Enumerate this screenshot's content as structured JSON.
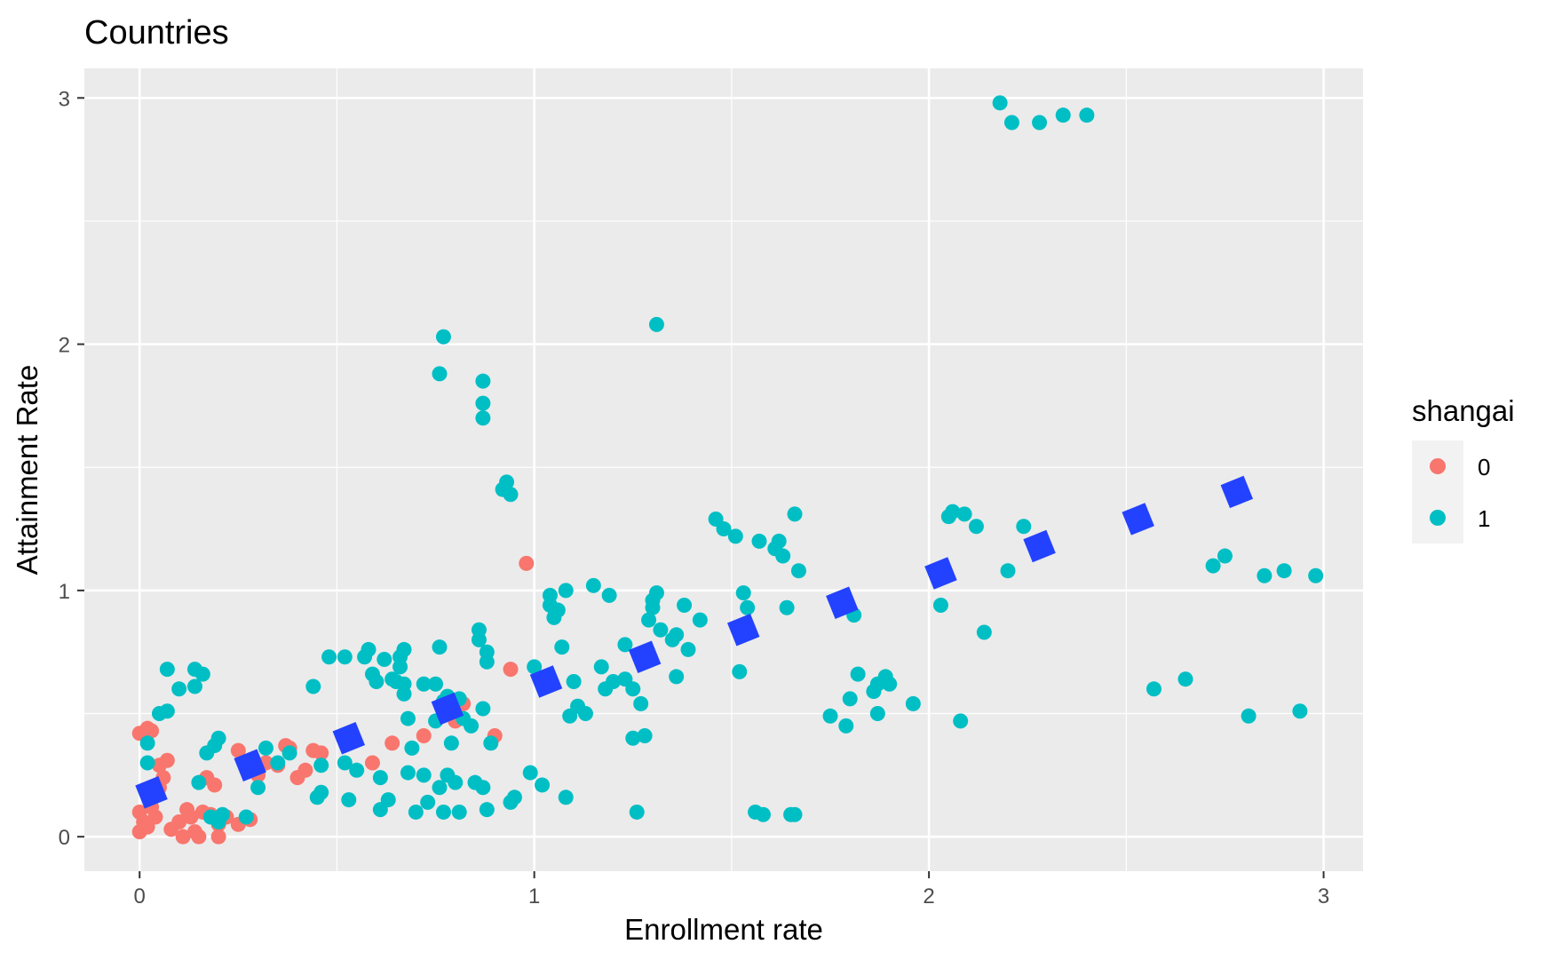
{
  "chart_data": {
    "type": "scatter",
    "title": "Countries",
    "xlabel": "Enrollment rate",
    "ylabel": "Attainment Rate",
    "xlim": [
      -0.14,
      3.1
    ],
    "ylim": [
      -0.14,
      3.12
    ],
    "xticks": [
      0,
      1,
      2,
      3
    ],
    "yticks": [
      0,
      1,
      2,
      3
    ],
    "grid": true,
    "legend": {
      "title": "shangai",
      "position": "right",
      "entries": [
        {
          "label": "0",
          "color": "#F8766D"
        },
        {
          "label": "1",
          "color": "#00BFC4"
        }
      ]
    },
    "series": [
      {
        "name": "0",
        "color": "#F8766D",
        "points": [
          [
            0.0,
            0.42
          ],
          [
            0.02,
            0.44
          ],
          [
            0.03,
            0.43
          ],
          [
            0.0,
            0.1
          ],
          [
            0.01,
            0.06
          ],
          [
            0.0,
            0.02
          ],
          [
            0.02,
            0.04
          ],
          [
            0.03,
            0.12
          ],
          [
            0.04,
            0.08
          ],
          [
            0.05,
            0.2
          ],
          [
            0.06,
            0.24
          ],
          [
            0.05,
            0.29
          ],
          [
            0.07,
            0.31
          ],
          [
            0.08,
            0.03
          ],
          [
            0.1,
            0.06
          ],
          [
            0.11,
            0.0
          ],
          [
            0.12,
            0.11
          ],
          [
            0.13,
            0.08
          ],
          [
            0.14,
            0.02
          ],
          [
            0.15,
            0.0
          ],
          [
            0.16,
            0.1
          ],
          [
            0.17,
            0.24
          ],
          [
            0.18,
            0.09
          ],
          [
            0.19,
            0.21
          ],
          [
            0.2,
            0.05
          ],
          [
            0.2,
            0.0
          ],
          [
            0.22,
            0.08
          ],
          [
            0.25,
            0.05
          ],
          [
            0.25,
            0.35
          ],
          [
            0.28,
            0.07
          ],
          [
            0.3,
            0.25
          ],
          [
            0.32,
            0.3
          ],
          [
            0.35,
            0.29
          ],
          [
            0.37,
            0.37
          ],
          [
            0.38,
            0.36
          ],
          [
            0.4,
            0.24
          ],
          [
            0.42,
            0.27
          ],
          [
            0.44,
            0.35
          ],
          [
            0.46,
            0.34
          ],
          [
            0.59,
            0.3
          ],
          [
            0.64,
            0.38
          ],
          [
            0.72,
            0.41
          ],
          [
            0.8,
            0.47
          ],
          [
            0.82,
            0.54
          ],
          [
            0.9,
            0.41
          ],
          [
            0.94,
            0.68
          ],
          [
            0.98,
            1.11
          ]
        ]
      },
      {
        "name": "1",
        "color": "#00BFC4",
        "points": [
          [
            0.02,
            0.38
          ],
          [
            0.02,
            0.3
          ],
          [
            0.05,
            0.5
          ],
          [
            0.07,
            0.68
          ],
          [
            0.07,
            0.51
          ],
          [
            0.1,
            0.6
          ],
          [
            0.14,
            0.61
          ],
          [
            0.14,
            0.68
          ],
          [
            0.16,
            0.66
          ],
          [
            0.15,
            0.22
          ],
          [
            0.17,
            0.34
          ],
          [
            0.19,
            0.37
          ],
          [
            0.2,
            0.4
          ],
          [
            0.18,
            0.08
          ],
          [
            0.2,
            0.06
          ],
          [
            0.21,
            0.09
          ],
          [
            0.27,
            0.08
          ],
          [
            0.3,
            0.2
          ],
          [
            0.32,
            0.36
          ],
          [
            0.35,
            0.3
          ],
          [
            0.38,
            0.34
          ],
          [
            0.44,
            0.61
          ],
          [
            0.45,
            0.16
          ],
          [
            0.46,
            0.18
          ],
          [
            0.46,
            0.29
          ],
          [
            0.48,
            0.73
          ],
          [
            0.52,
            0.73
          ],
          [
            0.52,
            0.3
          ],
          [
            0.53,
            0.15
          ],
          [
            0.55,
            0.27
          ],
          [
            0.57,
            0.73
          ],
          [
            0.58,
            0.76
          ],
          [
            0.59,
            0.66
          ],
          [
            0.6,
            0.63
          ],
          [
            0.61,
            0.24
          ],
          [
            0.61,
            0.11
          ],
          [
            0.62,
            0.72
          ],
          [
            0.63,
            0.15
          ],
          [
            0.64,
            0.64
          ],
          [
            0.65,
            0.63
          ],
          [
            0.66,
            0.69
          ],
          [
            0.66,
            0.73
          ],
          [
            0.67,
            0.76
          ],
          [
            0.67,
            0.62
          ],
          [
            0.67,
            0.58
          ],
          [
            0.68,
            0.48
          ],
          [
            0.68,
            0.26
          ],
          [
            0.69,
            0.36
          ],
          [
            0.7,
            0.1
          ],
          [
            0.72,
            0.62
          ],
          [
            0.72,
            0.25
          ],
          [
            0.73,
            0.14
          ],
          [
            0.75,
            0.62
          ],
          [
            0.75,
            0.47
          ],
          [
            0.76,
            0.77
          ],
          [
            0.76,
            0.2
          ],
          [
            0.77,
            0.1
          ],
          [
            0.77,
            0.55
          ],
          [
            0.78,
            0.57
          ],
          [
            0.78,
            0.25
          ],
          [
            0.79,
            0.38
          ],
          [
            0.8,
            0.22
          ],
          [
            0.81,
            0.1
          ],
          [
            0.81,
            0.56
          ],
          [
            0.82,
            0.48
          ],
          [
            0.84,
            0.45
          ],
          [
            0.85,
            0.22
          ],
          [
            0.86,
            0.8
          ],
          [
            0.86,
            0.84
          ],
          [
            0.87,
            0.52
          ],
          [
            0.87,
            0.2
          ],
          [
            0.88,
            0.11
          ],
          [
            0.88,
            0.71
          ],
          [
            0.88,
            0.75
          ],
          [
            0.89,
            0.38
          ],
          [
            0.76,
            1.88
          ],
          [
            0.77,
            2.03
          ],
          [
            0.87,
            1.85
          ],
          [
            0.87,
            1.76
          ],
          [
            0.87,
            1.7
          ],
          [
            0.92,
            1.41
          ],
          [
            0.93,
            1.44
          ],
          [
            0.94,
            1.39
          ],
          [
            0.94,
            0.14
          ],
          [
            0.95,
            0.16
          ],
          [
            0.99,
            0.26
          ],
          [
            1.0,
            0.69
          ],
          [
            1.02,
            0.21
          ],
          [
            1.04,
            0.98
          ],
          [
            1.04,
            0.94
          ],
          [
            1.05,
            0.89
          ],
          [
            1.06,
            0.92
          ],
          [
            1.07,
            0.77
          ],
          [
            1.08,
            0.16
          ],
          [
            1.09,
            0.49
          ],
          [
            1.1,
            0.63
          ],
          [
            1.11,
            0.53
          ],
          [
            1.13,
            0.5
          ],
          [
            1.08,
            1.0
          ],
          [
            1.15,
            1.02
          ],
          [
            1.19,
            0.98
          ],
          [
            1.17,
            0.69
          ],
          [
            1.18,
            0.6
          ],
          [
            1.2,
            0.63
          ],
          [
            1.23,
            0.64
          ],
          [
            1.23,
            0.78
          ],
          [
            1.25,
            0.6
          ],
          [
            1.25,
            0.4
          ],
          [
            1.26,
            0.1
          ],
          [
            1.27,
            0.54
          ],
          [
            1.28,
            0.41
          ],
          [
            1.29,
            0.88
          ],
          [
            1.3,
            0.93
          ],
          [
            1.3,
            0.96
          ],
          [
            1.31,
            0.99
          ],
          [
            1.32,
            0.84
          ],
          [
            1.31,
            2.08
          ],
          [
            1.35,
            0.8
          ],
          [
            1.36,
            0.82
          ],
          [
            1.36,
            0.65
          ],
          [
            1.38,
            0.94
          ],
          [
            1.39,
            0.76
          ],
          [
            1.42,
            0.88
          ],
          [
            1.46,
            1.29
          ],
          [
            1.48,
            1.25
          ],
          [
            1.51,
            1.22
          ],
          [
            1.52,
            0.67
          ],
          [
            1.53,
            0.99
          ],
          [
            1.54,
            0.93
          ],
          [
            1.57,
            1.2
          ],
          [
            1.61,
            1.17
          ],
          [
            1.62,
            1.2
          ],
          [
            1.63,
            1.14
          ],
          [
            1.64,
            0.93
          ],
          [
            1.66,
            1.31
          ],
          [
            1.67,
            1.08
          ],
          [
            1.56,
            0.1
          ],
          [
            1.58,
            0.09
          ],
          [
            1.65,
            0.09
          ],
          [
            1.66,
            0.09
          ],
          [
            1.75,
            0.49
          ],
          [
            1.79,
            0.45
          ],
          [
            1.8,
            0.56
          ],
          [
            1.81,
            0.9
          ],
          [
            1.82,
            0.66
          ],
          [
            1.86,
            0.59
          ],
          [
            1.87,
            0.62
          ],
          [
            1.87,
            0.5
          ],
          [
            1.89,
            0.65
          ],
          [
            1.9,
            0.62
          ],
          [
            1.96,
            0.54
          ],
          [
            2.03,
            0.94
          ],
          [
            2.05,
            1.3
          ],
          [
            2.06,
            1.32
          ],
          [
            2.09,
            1.31
          ],
          [
            2.12,
            1.26
          ],
          [
            2.14,
            0.83
          ],
          [
            2.08,
            0.47
          ],
          [
            2.2,
            1.08
          ],
          [
            2.24,
            1.26
          ],
          [
            2.18,
            2.98
          ],
          [
            2.21,
            2.9
          ],
          [
            2.28,
            2.9
          ],
          [
            2.34,
            2.93
          ],
          [
            2.4,
            2.93
          ],
          [
            2.57,
            0.6
          ],
          [
            2.65,
            0.64
          ],
          [
            2.72,
            1.1
          ],
          [
            2.75,
            1.14
          ],
          [
            2.81,
            0.49
          ],
          [
            2.85,
            1.06
          ],
          [
            2.9,
            1.08
          ],
          [
            2.94,
            0.51
          ],
          [
            2.98,
            1.06
          ]
        ]
      },
      {
        "name": "",
        "color": "#2342FF",
        "shape": "square",
        "points": [
          [
            0.03,
            0.18
          ],
          [
            0.28,
            0.29
          ],
          [
            0.53,
            0.4
          ],
          [
            0.78,
            0.52
          ],
          [
            1.03,
            0.63
          ],
          [
            1.28,
            0.73
          ],
          [
            1.53,
            0.84
          ],
          [
            1.78,
            0.95
          ],
          [
            2.03,
            1.07
          ],
          [
            2.28,
            1.18
          ],
          [
            2.53,
            1.29
          ],
          [
            2.78,
            1.4
          ]
        ]
      }
    ]
  }
}
